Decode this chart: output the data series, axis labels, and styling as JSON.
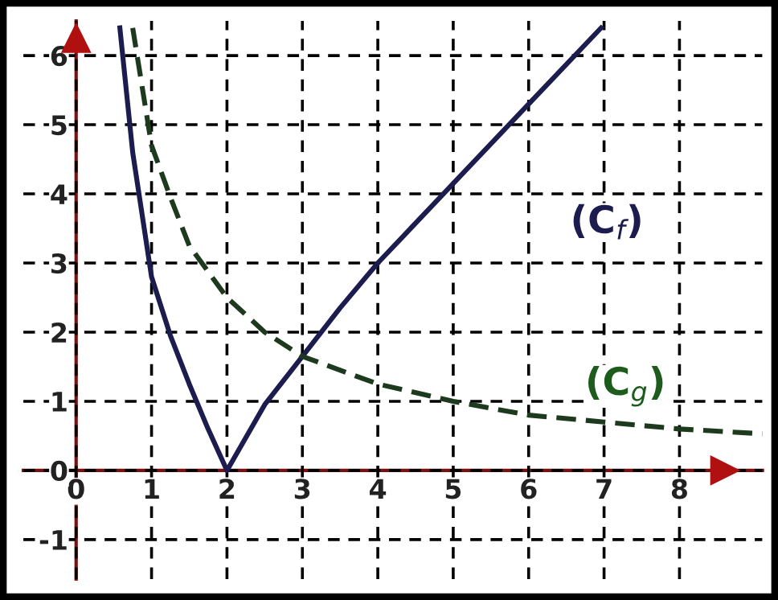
{
  "chart_data": {
    "type": "line",
    "xlim": [
      -0.7,
      9.1
    ],
    "ylim": [
      -1.57,
      6.5
    ],
    "xticks": [
      0,
      1,
      2,
      3,
      4,
      5,
      6,
      7,
      8
    ],
    "yticks": [
      -1,
      0,
      1,
      2,
      3,
      4,
      5,
      6
    ],
    "grid": true,
    "marker": "none",
    "series": [
      {
        "name": "(C$_{f}$)",
        "color": "#1c1c4e",
        "line_style": "solid",
        "x": [
          0.58,
          0.75,
          1,
          1.25,
          1.5,
          1.75,
          2,
          2.5,
          3,
          3.5,
          4,
          5,
          6,
          6.96
        ],
        "values": [
          6.4,
          4.6,
          2.8,
          1.95,
          1.25,
          0.6,
          0,
          0.95,
          1.65,
          2.35,
          3,
          4.15,
          5.3,
          6.4
        ]
      },
      {
        "name": "(C$_{g}$)",
        "color": "#1e3a1e",
        "line_style": "dashed",
        "x": [
          0.75,
          1,
          1.25,
          1.5,
          2,
          2.5,
          3,
          4,
          5,
          6,
          7,
          8,
          9.1
        ],
        "values": [
          6.4,
          4.7,
          3.95,
          3.25,
          2.5,
          2,
          1.65,
          1.25,
          1.0,
          0.8,
          0.7,
          0.6,
          0.53
        ]
      }
    ]
  }
}
